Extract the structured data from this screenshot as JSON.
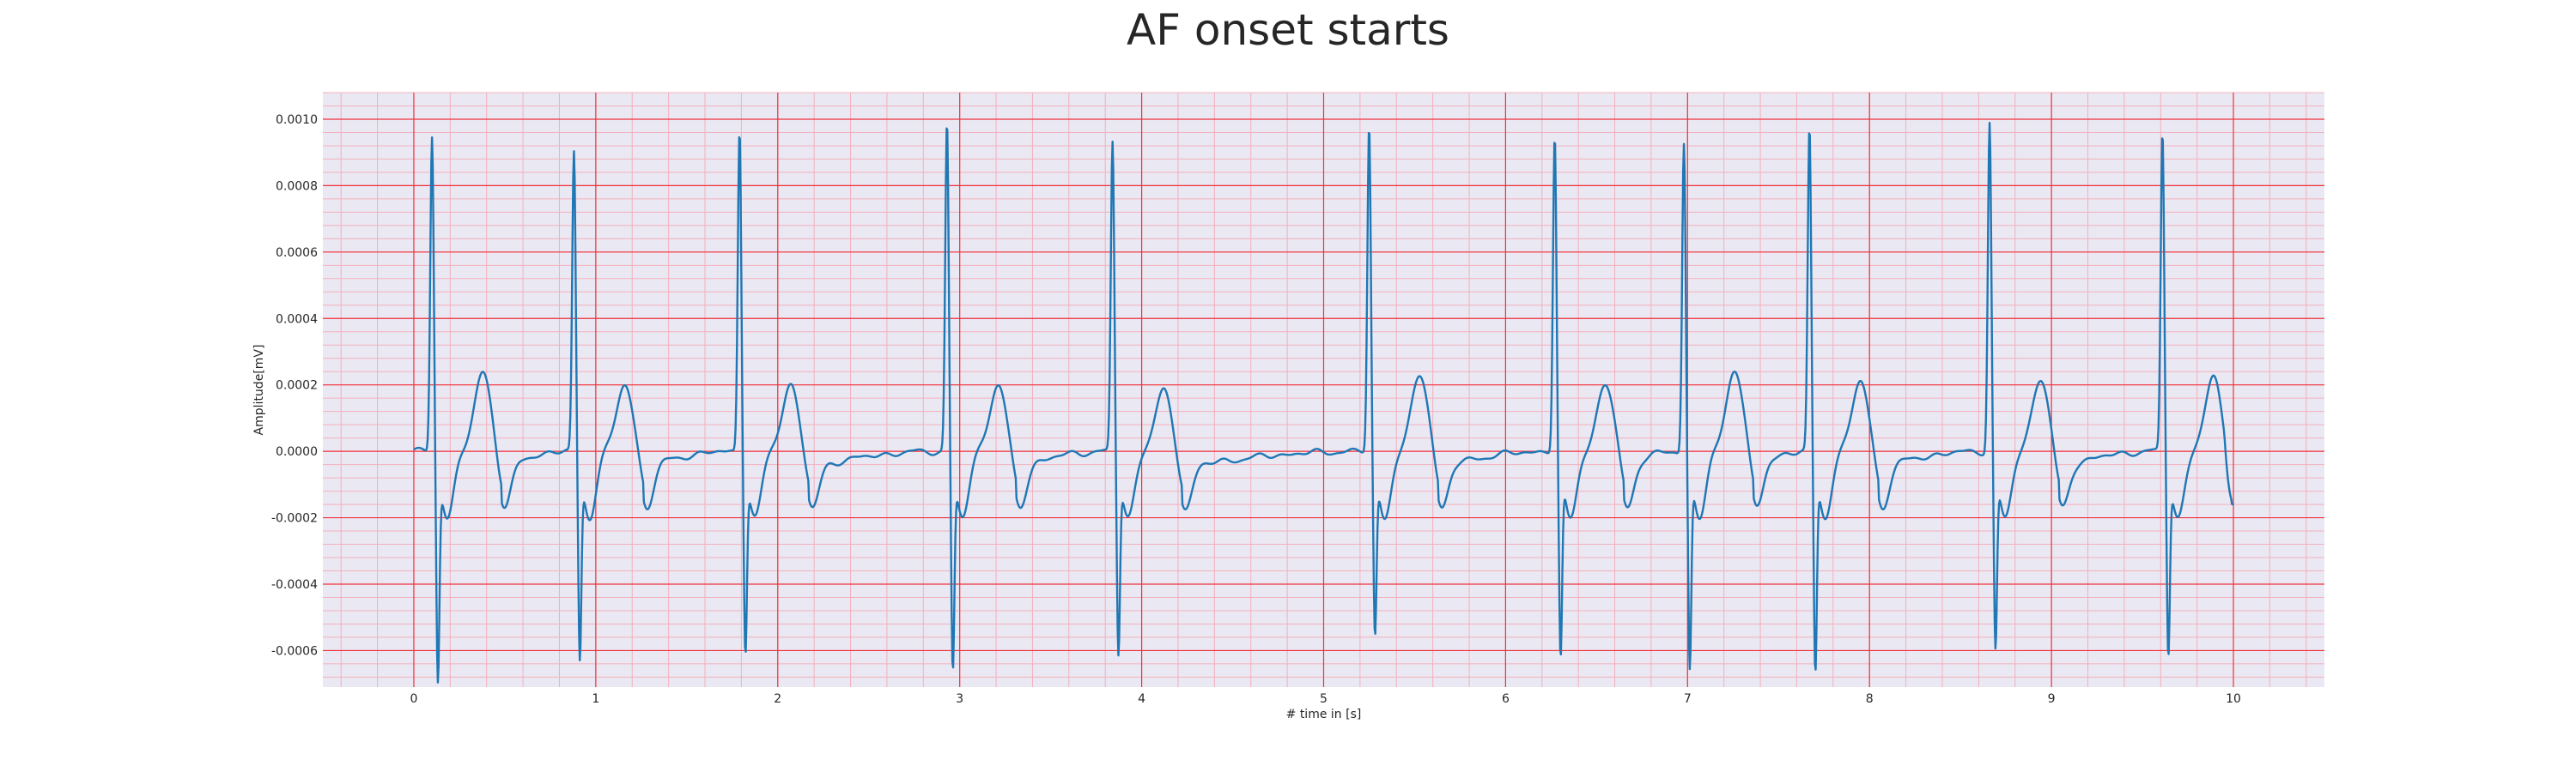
{
  "chart_data": {
    "type": "line",
    "title": "AF onset starts",
    "xlabel": "# time in [s]",
    "ylabel": "Amplitude[mV]",
    "xlim": [
      -0.5,
      10.5
    ],
    "ylim": [
      -0.00071,
      0.00108
    ],
    "xticks": [
      0,
      1,
      2,
      3,
      4,
      5,
      6,
      7,
      8,
      9,
      10
    ],
    "yticks": [
      -0.0006,
      -0.0004,
      -0.0002,
      0.0,
      0.0002,
      0.0004,
      0.0006,
      0.0008,
      0.001
    ],
    "ytick_labels": [
      "-0.0006",
      "-0.0004",
      "-0.0002",
      "0.0000",
      "0.0002",
      "0.0004",
      "0.0006",
      "0.0008",
      "0.0010"
    ],
    "grid": true,
    "minor_grid": true,
    "colors": {
      "line": "#1f77b4",
      "plot_background": "#eae8f2",
      "major_grid": "#f0323c",
      "minor_grid": "#f3b0bd"
    },
    "series": [
      {
        "beats": [
          {
            "t": 0.1,
            "peak": 0.00096,
            "trough": -0.00063,
            "t_wave": 0.00024
          },
          {
            "t": 0.88,
            "peak": 0.00091,
            "trough": -0.00057,
            "t_wave": 0.0002
          },
          {
            "t": 1.79,
            "peak": 0.00098,
            "trough": -0.00054,
            "t_wave": 0.0002
          },
          {
            "t": 2.93,
            "peak": 0.001,
            "trough": -0.0006,
            "t_wave": 0.0002
          },
          {
            "t": 3.84,
            "peak": 0.00094,
            "trough": -0.00055,
            "t_wave": 0.00018
          },
          {
            "t": 5.25,
            "peak": 0.00099,
            "trough": -0.0005,
            "t_wave": 0.00023
          },
          {
            "t": 6.27,
            "peak": 0.00096,
            "trough": -0.00057,
            "t_wave": 0.0002
          },
          {
            "t": 6.98,
            "peak": 0.00094,
            "trough": -0.0006,
            "t_wave": 0.00025
          },
          {
            "t": 7.67,
            "peak": 0.00098,
            "trough": -0.00061,
            "t_wave": 0.00021
          },
          {
            "t": 8.66,
            "peak": 0.001,
            "trough": -0.00054,
            "t_wave": 0.00022
          },
          {
            "t": 9.61,
            "peak": 0.00097,
            "trough": -0.00055,
            "t_wave": 0.00022
          }
        ],
        "x_start": 0,
        "x_end": 10,
        "end_value": -0.00016
      }
    ]
  }
}
